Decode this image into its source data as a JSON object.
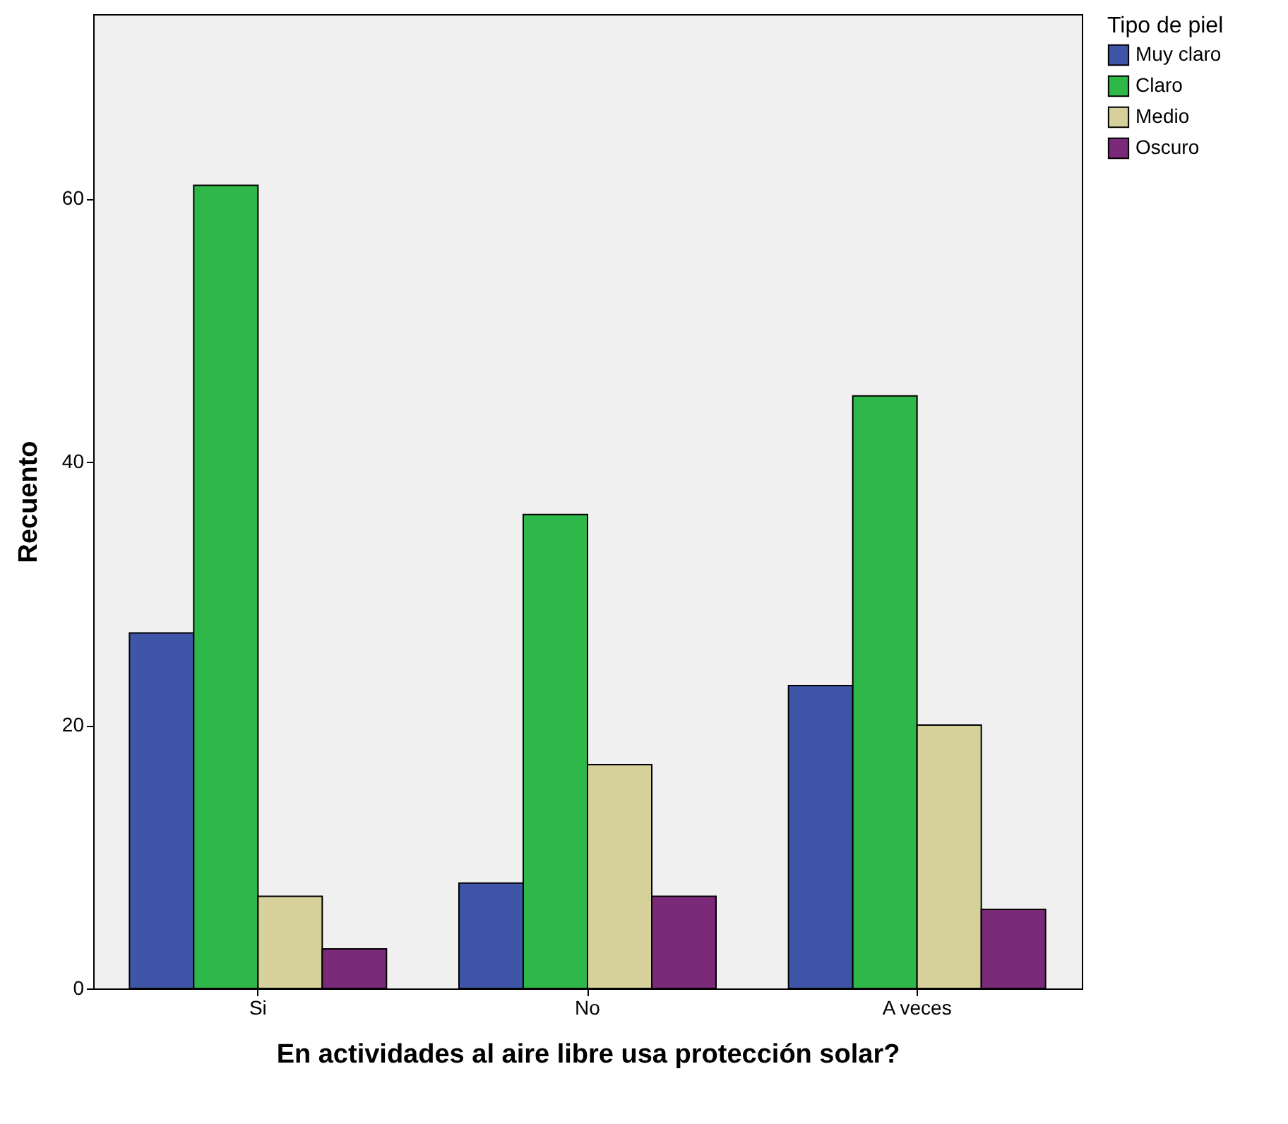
{
  "chart_data": {
    "type": "bar",
    "xlabel": "En actividades al aire libre usa protección solar?",
    "ylabel": "Recuento",
    "legend_title": "Tipo de piel",
    "categories": [
      "Si",
      "No",
      "A veces"
    ],
    "series": [
      {
        "name": "Muy claro",
        "color": "#3f56a8",
        "values": [
          27,
          8,
          23
        ]
      },
      {
        "name": "Claro",
        "color": "#2fb84a",
        "values": [
          61,
          36,
          45
        ]
      },
      {
        "name": "Medio",
        "color": "#d6d09a",
        "values": [
          7,
          17,
          20
        ]
      },
      {
        "name": "Oscuro",
        "color": "#7b2a7a",
        "values": [
          3,
          7,
          6
        ]
      }
    ],
    "ylim": [
      0,
      74
    ],
    "yticks": [
      0,
      20,
      40,
      60
    ],
    "legend": "top right"
  }
}
